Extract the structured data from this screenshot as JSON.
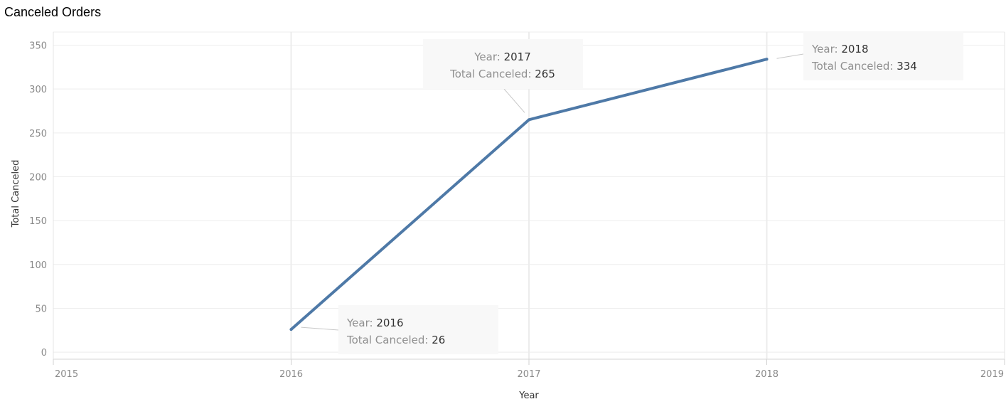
{
  "page": {
    "title": "Canceled Orders"
  },
  "chart_data": {
    "type": "line",
    "title": "Canceled Orders",
    "xlabel": "Year",
    "ylabel": "Total Canceled",
    "x_ticks": [
      "2015",
      "2016",
      "2017",
      "2018",
      "2019"
    ],
    "y_ticks": [
      0,
      50,
      100,
      150,
      200,
      250,
      300,
      350
    ],
    "xlim": [
      2015,
      2019
    ],
    "ylim": [
      -8,
      365
    ],
    "grid": true,
    "line_color": "#4e79a7",
    "series": [
      {
        "x": [
          2016,
          2017,
          2018
        ],
        "values": [
          26,
          265,
          334
        ]
      }
    ],
    "annotations": [
      {
        "year_key": "Year:",
        "year": "2016",
        "total_key": "Total Canceled:",
        "total": "26"
      },
      {
        "year_key": "Year:",
        "year": "2017",
        "total_key": "Total Canceled:",
        "total": "265"
      },
      {
        "year_key": "Year:",
        "year": "2018",
        "total_key": "Total Canceled:",
        "total": "334"
      }
    ]
  }
}
